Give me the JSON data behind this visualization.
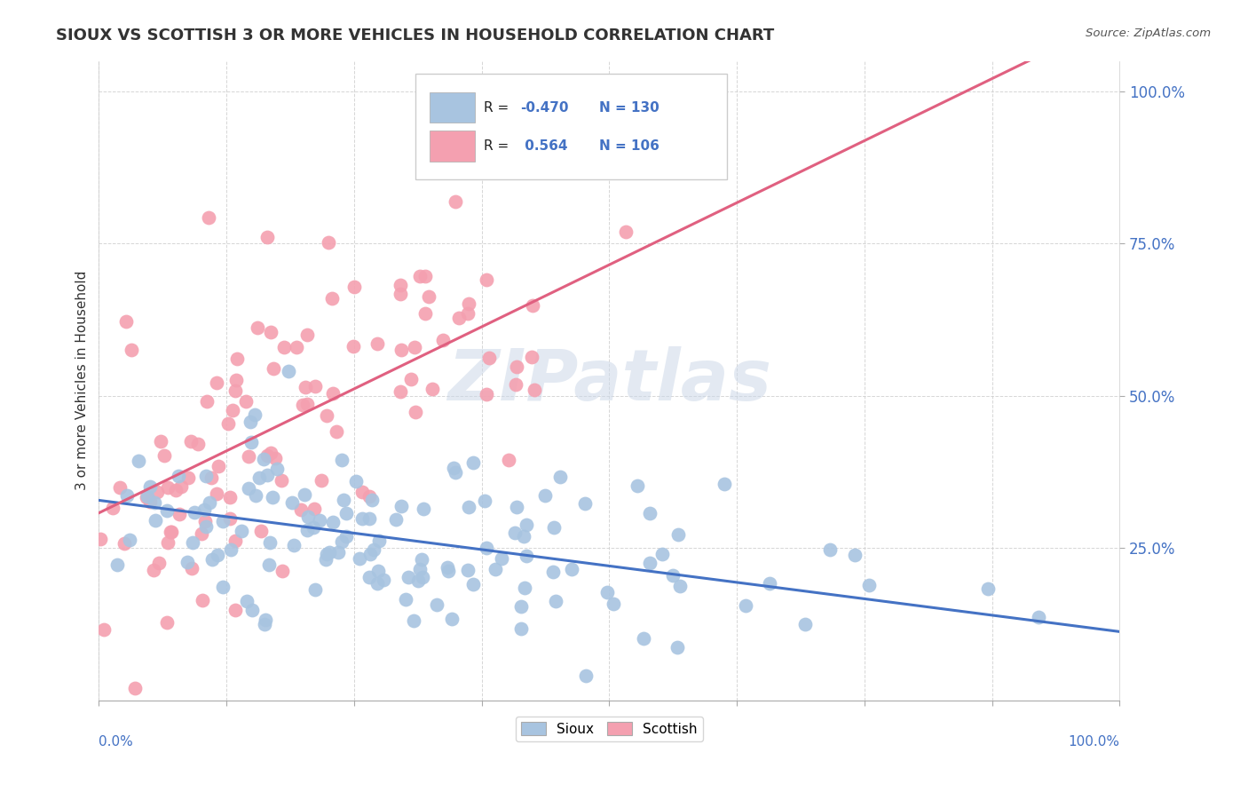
{
  "title": "SIOUX VS SCOTTISH 3 OR MORE VEHICLES IN HOUSEHOLD CORRELATION CHART",
  "source_text": "Source: ZipAtlas.com",
  "ylabel": "3 or more Vehicles in Household",
  "ytick_values": [
    0.25,
    0.5,
    0.75,
    1.0
  ],
  "legend_blue_r": "-0.470",
  "legend_blue_n": "130",
  "legend_pink_r": "0.564",
  "legend_pink_n": "106",
  "blue_color": "#a8c4e0",
  "pink_color": "#f4a0b0",
  "blue_line_color": "#4472c4",
  "pink_line_color": "#e06080",
  "watermark_color": "#ccd8e8",
  "background_color": "#ffffff",
  "blue_r": -0.47,
  "blue_n": 130,
  "pink_r": 0.564,
  "pink_n": 106,
  "seed": 42
}
